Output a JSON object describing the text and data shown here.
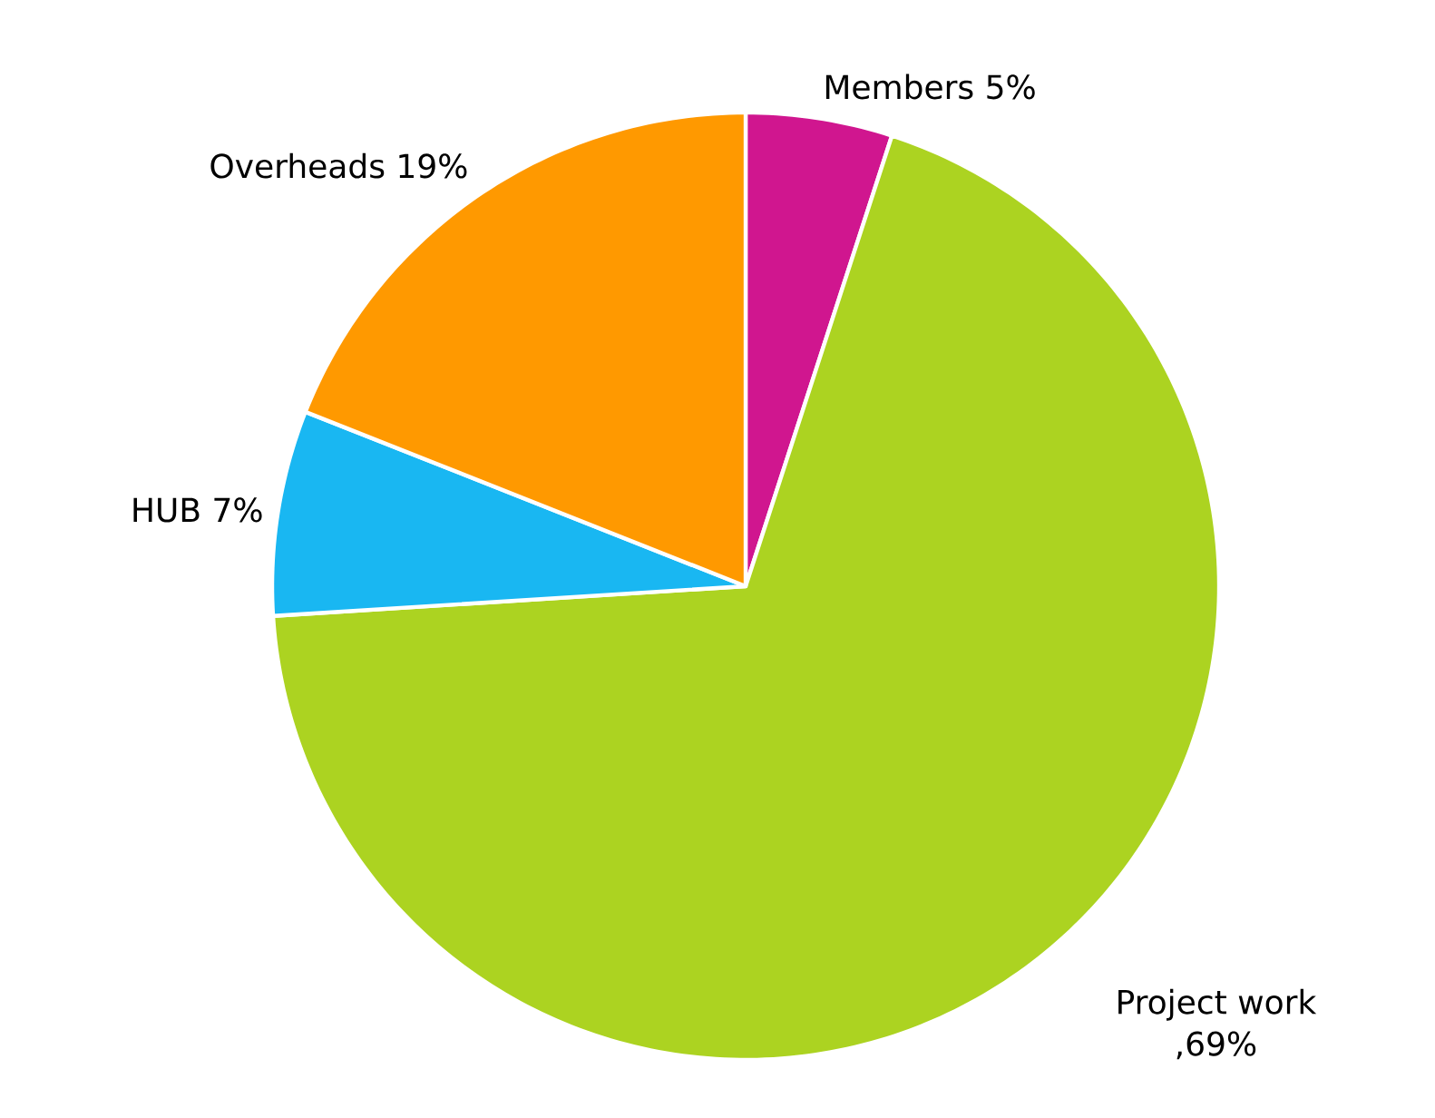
{
  "chart_data": {
    "type": "pie",
    "categories": [
      "Members",
      "Project work",
      "HUB",
      "Overheads"
    ],
    "values": [
      5,
      69,
      7,
      19
    ],
    "value_labels": [
      "5%",
      ",69%",
      "7%",
      "19%"
    ],
    "colors": [
      "#d0168f",
      "#acd321",
      "#19b7f2",
      "#ff9900"
    ]
  }
}
